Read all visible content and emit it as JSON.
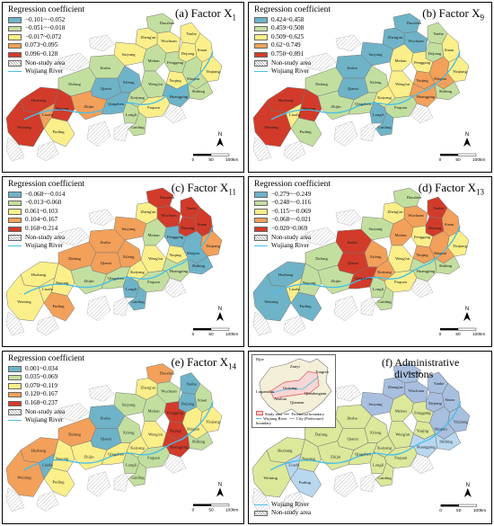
{
  "colors": {
    "c1": "#6fb3c8",
    "c2": "#c3df9f",
    "c3": "#fbef8a",
    "c4": "#f2a05a",
    "c5": "#d23b2a",
    "non_study": "#ffffff",
    "river": "#49bfe8",
    "adm1": "#a8bfe0",
    "adm2": "#dce89a",
    "adm3": "#b9d8f0"
  },
  "common": {
    "legend_title": "Regression coefficient",
    "non_study": "Non-study area",
    "river": "Wujiang River",
    "north": "N",
    "scale_ticks": [
      "0",
      "50",
      "100"
    ],
    "scale_unit": "km"
  },
  "panels": [
    {
      "title": "(a) Factor X",
      "sub": "1",
      "classes": [
        "−0.101~−0.052",
        "−0.051~−0.018",
        "−0.017~0.072",
        "0.073~0.095",
        "0.096~0.128"
      ]
    },
    {
      "title": "(b) Factor X",
      "sub": "9",
      "classes": [
        "0.424~0.458",
        "0.459~0.508",
        "0.509~0.625",
        "0.62~0.749",
        "0.750~0.891"
      ]
    },
    {
      "title": "(c) Factor X",
      "sub": "11",
      "classes": [
        "−0.068~−0.014",
        "−0.013~0.060",
        "0.061~0.103",
        "0.104~0.167",
        "0.168~0.214"
      ]
    },
    {
      "title": "(d) Factor X",
      "sub": "13",
      "classes": [
        "−0.279~−0.249",
        "−0.248~−0.116",
        "−0.115~−0.069",
        "−0.068~−0.021",
        "−0.020~0.069"
      ]
    },
    {
      "title": "(e) Factor X",
      "sub": "14",
      "classes": [
        "0.001~0.034",
        "0.035~0.069",
        "0.070~0.119",
        "0.120~0.167",
        "0.168~0.237"
      ]
    }
  ],
  "admin": {
    "title_line1": "(f) Administrative",
    "title_line2": "divisions",
    "inset_legend": [
      "Study area",
      "Provincial boundary",
      "Wujiang River",
      "City (Prefecture) boundary"
    ],
    "inset_labels": [
      "Guiyang",
      "Liupanshui",
      "Qiannan",
      "Zunyi",
      "Tongren",
      "Qiandongnan",
      "Anshun",
      "Bijie"
    ]
  },
  "counties": [
    "Daozhen",
    "Wuchuan",
    "Zheng'an",
    "Yanhe",
    "Dejiang",
    "Suiyang",
    "Sinan",
    "Yinjiang",
    "Fenggang",
    "Meitan",
    "Shiqian",
    "Jinsha",
    "Yuqing",
    "Weng'an",
    "Shibing",
    "Dafang",
    "Qianxi",
    "Xifeng",
    "Kaiyang",
    "Huangping",
    "Hezhang",
    "Weining",
    "Nayong",
    "Zhijin",
    "Qingzhen",
    "Fuquan",
    "Puding",
    "Longli",
    "Guiding",
    "Liuzhi"
  ],
  "assign": [
    [
      2,
      3,
      3,
      3,
      3,
      3,
      3,
      3,
      2,
      2,
      2,
      2,
      3,
      2,
      2,
      2,
      1,
      1,
      2,
      1,
      5,
      5,
      5,
      4,
      1,
      3,
      3,
      2,
      2,
      4
    ],
    [
      1,
      1,
      1,
      2,
      2,
      1,
      3,
      3,
      3,
      3,
      4,
      1,
      4,
      3,
      2,
      2,
      1,
      2,
      3,
      4,
      5,
      5,
      5,
      2,
      2,
      2,
      2,
      1,
      1,
      3
    ],
    [
      5,
      5,
      3,
      5,
      5,
      4,
      5,
      4,
      1,
      2,
      1,
      4,
      3,
      3,
      1,
      4,
      4,
      4,
      3,
      2,
      3,
      3,
      3,
      2,
      2,
      2,
      4,
      1,
      1,
      3
    ],
    [
      2,
      4,
      3,
      5,
      5,
      2,
      4,
      3,
      3,
      4,
      4,
      5,
      4,
      3,
      2,
      2,
      5,
      4,
      4,
      2,
      1,
      1,
      2,
      2,
      5,
      3,
      1,
      2,
      2,
      3
    ],
    [
      4,
      2,
      3,
      1,
      1,
      2,
      2,
      3,
      5,
      2,
      3,
      1,
      5,
      3,
      2,
      4,
      1,
      2,
      3,
      5,
      4,
      4,
      3,
      3,
      3,
      2,
      3,
      2,
      2,
      1
    ]
  ],
  "admin_assign": [
    1,
    1,
    1,
    1,
    1,
    1,
    1,
    1,
    2,
    2,
    1,
    2,
    2,
    2,
    3,
    2,
    2,
    2,
    2,
    3,
    2,
    2,
    2,
    2,
    2,
    2,
    3,
    2,
    2,
    3
  ]
}
